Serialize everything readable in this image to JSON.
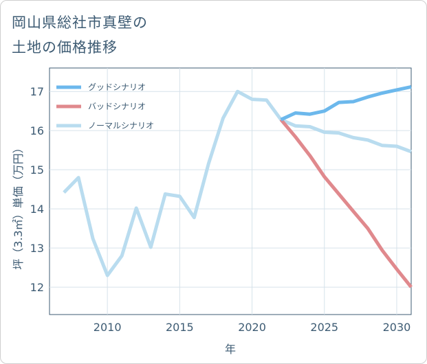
{
  "title_lines": [
    "岡山県総社市真壁の",
    "土地の価格推移"
  ],
  "chart_data": {
    "type": "line",
    "title": "岡山県総社市真壁の土地の価格推移",
    "xlabel": "年",
    "ylabel": "坪（3.3㎡）単価（万円）",
    "xlim": [
      2006,
      2031
    ],
    "ylim": [
      11.3,
      17.6
    ],
    "xticks": [
      2010,
      2015,
      2020,
      2025,
      2030
    ],
    "yticks": [
      12,
      13,
      14,
      15,
      16,
      17
    ],
    "grid": true,
    "legend_position": "top-left",
    "series": [
      {
        "name": "グッドシナリオ",
        "color": "#6cb8ec",
        "x": [
          2022,
          2023,
          2024,
          2025,
          2026,
          2027,
          2028,
          2029,
          2030,
          2031
        ],
        "values": [
          16.28,
          16.45,
          16.42,
          16.5,
          16.72,
          16.74,
          16.86,
          16.96,
          17.04,
          17.12
        ]
      },
      {
        "name": "バッドシナリオ",
        "color": "#e0898d",
        "x": [
          2022,
          2023,
          2024,
          2025,
          2026,
          2027,
          2028,
          2029,
          2030,
          2031
        ],
        "values": [
          16.28,
          15.84,
          15.36,
          14.82,
          14.38,
          13.94,
          13.5,
          12.94,
          12.46,
          12.0
        ]
      },
      {
        "name": "ノーマルシナリオ",
        "color": "#b9dcef",
        "x": [
          2007,
          2008,
          2009,
          2010,
          2011,
          2012,
          2013,
          2014,
          2015,
          2016,
          2017,
          2018,
          2019,
          2020,
          2021,
          2022,
          2023,
          2024,
          2025,
          2026,
          2027,
          2028,
          2029,
          2030,
          2031
        ],
        "values": [
          14.42,
          14.8,
          13.24,
          12.3,
          12.8,
          14.02,
          13.02,
          14.38,
          14.32,
          13.78,
          15.16,
          16.32,
          17.0,
          16.8,
          16.78,
          16.28,
          16.12,
          16.1,
          15.96,
          15.94,
          15.82,
          15.76,
          15.62,
          15.6,
          15.46
        ]
      }
    ]
  }
}
